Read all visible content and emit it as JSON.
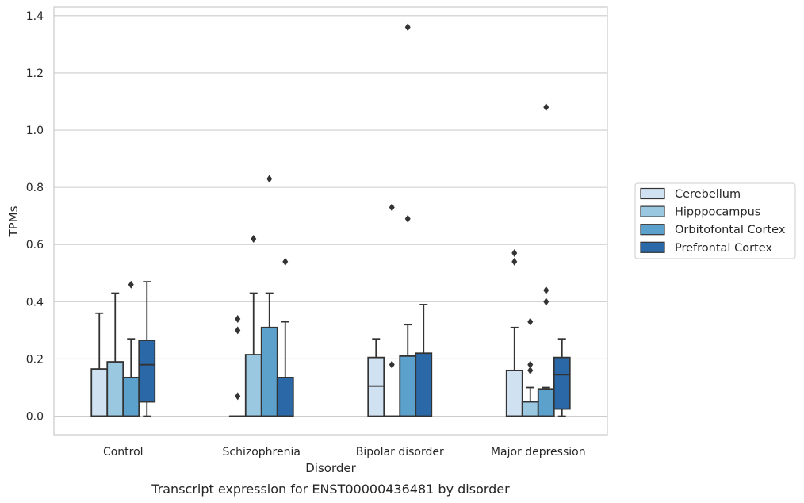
{
  "chart_data": {
    "type": "box",
    "title": "",
    "caption": "Transcript expression for ENST00000436481 by disorder",
    "xlabel": "Disorder",
    "ylabel": "TPMs",
    "ylim": [
      -0.065,
      1.43
    ],
    "yticks": [
      "0.0",
      "0.2",
      "0.4",
      "0.6",
      "0.8",
      "1.0",
      "1.2",
      "1.4"
    ],
    "grid": "horizontal",
    "legend_placement": "right",
    "categories": [
      "Control",
      "Schizophrenia",
      "Bipolar disorder",
      "Major depression"
    ],
    "series": [
      {
        "name": "Cerebellum",
        "color": "#d0e1f2",
        "boxes": [
          {
            "whislo": 0.0,
            "q1": 0.0,
            "med": 0.0,
            "q3": 0.165,
            "whishi": 0.36,
            "fliers": []
          },
          {
            "whislo": 0.0,
            "q1": 0.0,
            "med": 0.0,
            "q3": 0.0,
            "whishi": 0.0,
            "fliers": [
              0.07,
              0.3,
              0.34
            ]
          },
          {
            "whislo": 0.0,
            "q1": 0.0,
            "med": 0.105,
            "q3": 0.205,
            "whishi": 0.27,
            "fliers": []
          },
          {
            "whislo": 0.0,
            "q1": 0.0,
            "med": 0.0,
            "q3": 0.16,
            "whishi": 0.31,
            "fliers": [
              0.54,
              0.57
            ]
          }
        ]
      },
      {
        "name": "Hipppocampus",
        "color": "#9ac8e0",
        "boxes": [
          {
            "whislo": 0.0,
            "q1": 0.0,
            "med": 0.0,
            "q3": 0.19,
            "whishi": 0.43,
            "fliers": []
          },
          {
            "whislo": 0.0,
            "q1": 0.0,
            "med": 0.0,
            "q3": 0.215,
            "whishi": 0.43,
            "fliers": [
              0.62
            ]
          },
          {
            "whislo": 0.0,
            "q1": 0.0,
            "med": 0.0,
            "q3": 0.0,
            "whishi": 0.0,
            "fliers": [
              0.18,
              0.73
            ]
          },
          {
            "whislo": 0.0,
            "q1": 0.0,
            "med": 0.0,
            "q3": 0.05,
            "whishi": 0.1,
            "fliers": [
              0.16,
              0.18,
              0.33
            ]
          }
        ]
      },
      {
        "name": "Orbitofontal Cortex",
        "color": "#5ca0cc",
        "boxes": [
          {
            "whislo": 0.0,
            "q1": 0.0,
            "med": 0.0,
            "q3": 0.135,
            "whishi": 0.27,
            "fliers": [
              0.46
            ]
          },
          {
            "whislo": 0.0,
            "q1": 0.0,
            "med": 0.0,
            "q3": 0.31,
            "whishi": 0.43,
            "fliers": [
              0.83
            ]
          },
          {
            "whislo": 0.0,
            "q1": 0.0,
            "med": 0.0,
            "q3": 0.21,
            "whishi": 0.32,
            "fliers": [
              0.69,
              1.36
            ]
          },
          {
            "whislo": 0.0,
            "q1": 0.0,
            "med": 0.0,
            "q3": 0.095,
            "whishi": 0.1,
            "fliers": [
              0.4,
              0.44,
              1.08
            ]
          }
        ]
      },
      {
        "name": "Prefrontal Cortex",
        "color": "#2a68a8",
        "boxes": [
          {
            "whislo": 0.0,
            "q1": 0.05,
            "med": 0.18,
            "q3": 0.265,
            "whishi": 0.47,
            "fliers": []
          },
          {
            "whislo": 0.0,
            "q1": 0.0,
            "med": 0.0,
            "q3": 0.135,
            "whishi": 0.33,
            "fliers": [
              0.54
            ]
          },
          {
            "whislo": 0.0,
            "q1": 0.0,
            "med": 0.0,
            "q3": 0.22,
            "whishi": 0.39,
            "fliers": []
          },
          {
            "whislo": 0.0,
            "q1": 0.025,
            "med": 0.145,
            "q3": 0.205,
            "whishi": 0.27,
            "fliers": []
          }
        ]
      }
    ]
  }
}
